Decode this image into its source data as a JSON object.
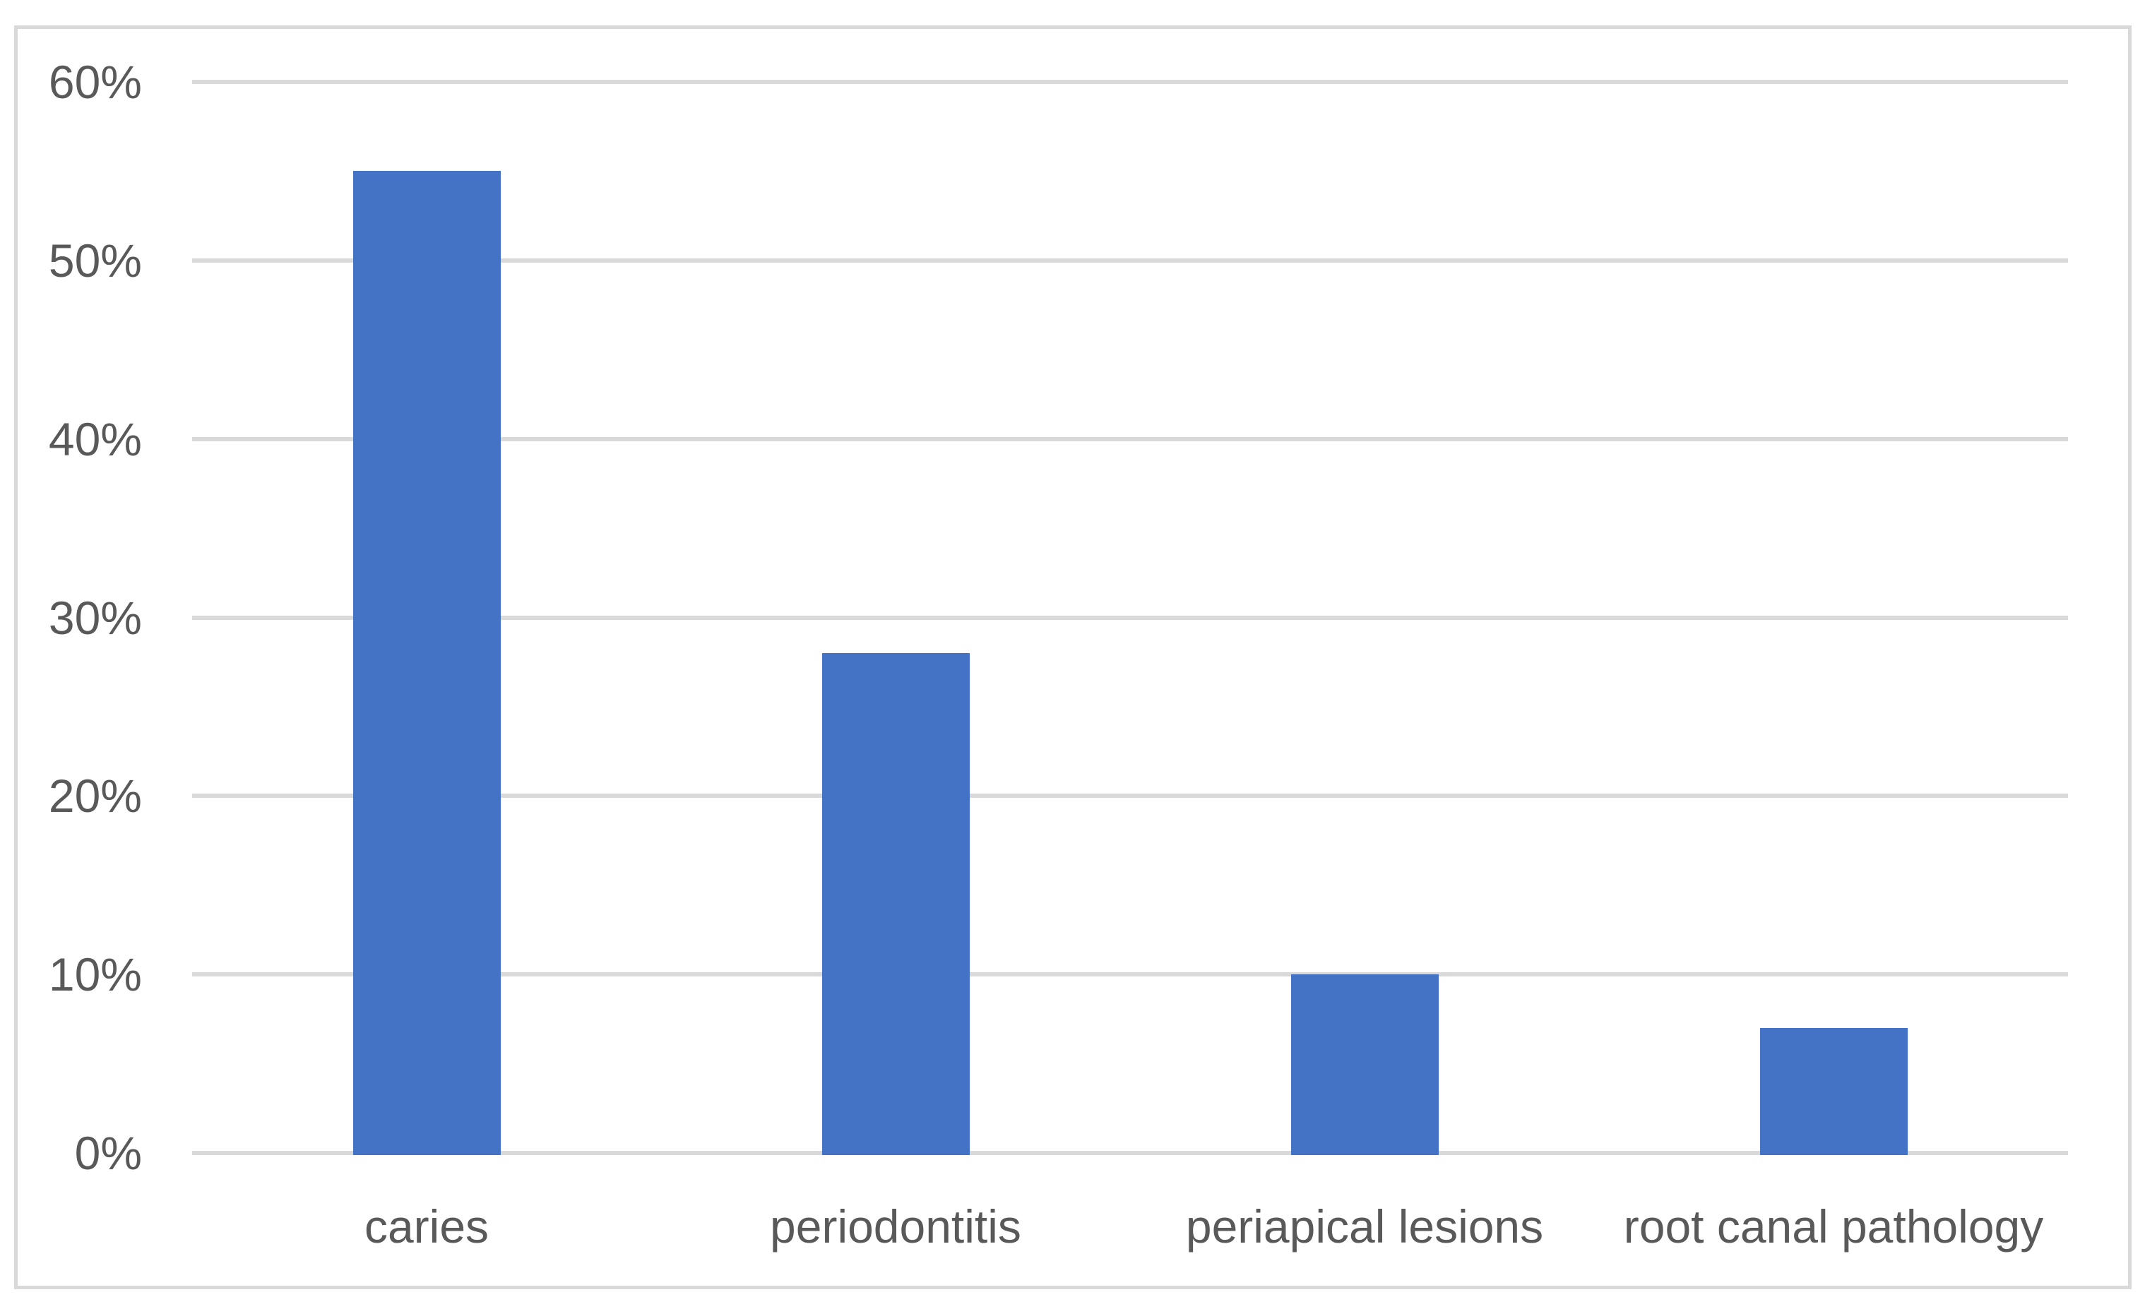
{
  "chart_data": {
    "type": "bar",
    "title": "",
    "xlabel": "",
    "ylabel": "",
    "categories": [
      "caries",
      "periodontitis",
      "periapical lesions",
      "root canal pathology"
    ],
    "values": [
      55,
      28,
      10,
      7
    ],
    "series_name": "",
    "ylim": [
      0,
      60
    ],
    "ytick_step": 10,
    "ytick_labels": [
      "0%",
      "10%",
      "20%",
      "30%",
      "40%",
      "50%",
      "60%"
    ],
    "grid": true,
    "legend": false,
    "legend_position": "none",
    "value_unit": "%",
    "colors": {
      "bar": "#4472C4",
      "gridline": "#D9D9D9",
      "frame_border": "#D9D9D9",
      "tick_label": "#595959",
      "background": "#FFFFFF"
    }
  }
}
